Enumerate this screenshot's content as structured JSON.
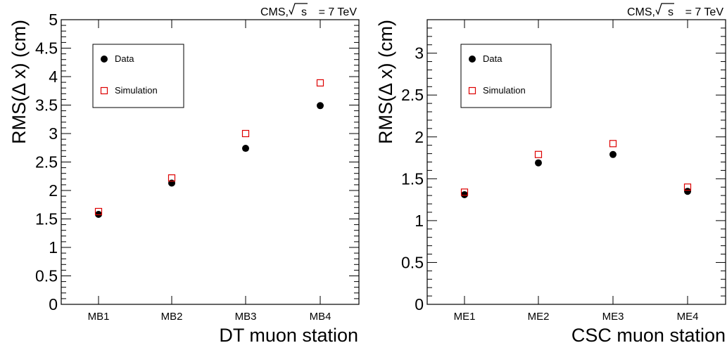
{
  "chart_data": [
    {
      "type": "scatter",
      "header": "CMS, √s = 7 TeV",
      "header_prefix": "CMS,",
      "header_sqrt": "s",
      "header_suffix": "= 7 TeV",
      "xlabel": "DT muon station",
      "ylabel": "RMS(Δ x) (cm)",
      "categories": [
        "MB1",
        "MB2",
        "MB3",
        "MB4"
      ],
      "ylim": [
        0,
        5
      ],
      "yticks": [
        "0",
        "0.5",
        "1",
        "1.5",
        "2",
        "2.5",
        "3",
        "3.5",
        "4",
        "4.5",
        "5"
      ],
      "ytick_values": [
        0,
        0.5,
        1,
        1.5,
        2,
        2.5,
        3,
        3.5,
        4,
        4.5,
        5
      ],
      "legend_position": "top-left",
      "series": [
        {
          "name": "Data",
          "marker": "filled-circle",
          "color": "#000000",
          "values": [
            1.58,
            2.13,
            2.74,
            3.49
          ]
        },
        {
          "name": "Simulation",
          "marker": "open-square",
          "color": "#dd0000",
          "values": [
            1.63,
            2.22,
            3.0,
            3.89
          ]
        }
      ]
    },
    {
      "type": "scatter",
      "header": "CMS, √s = 7 TeV",
      "header_prefix": "CMS,",
      "header_sqrt": "s",
      "header_suffix": "= 7 TeV",
      "xlabel": "CSC muon station",
      "ylabel": "RMS(Δ x) (cm)",
      "categories": [
        "ME1",
        "ME2",
        "ME3",
        "ME4"
      ],
      "ylim": [
        0,
        3.4
      ],
      "yticks": [
        "0",
        "0.5",
        "1",
        "1.5",
        "2",
        "2.5",
        "3"
      ],
      "ytick_values": [
        0,
        0.5,
        1,
        1.5,
        2,
        2.5,
        3
      ],
      "legend_position": "top-left",
      "series": [
        {
          "name": "Data",
          "marker": "filled-circle",
          "color": "#000000",
          "values": [
            1.31,
            1.69,
            1.79,
            1.35
          ]
        },
        {
          "name": "Simulation",
          "marker": "open-square",
          "color": "#dd0000",
          "values": [
            1.34,
            1.79,
            1.92,
            1.4
          ]
        }
      ]
    }
  ]
}
